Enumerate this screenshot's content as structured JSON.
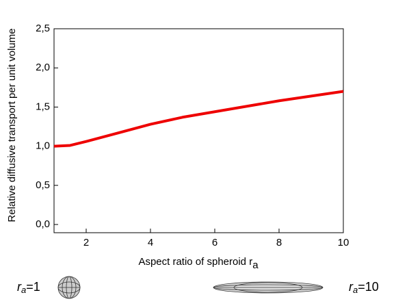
{
  "chart_data": {
    "type": "line",
    "x_label": "Aspect ratio of spheroid r",
    "x_label_sub": "a",
    "y_label": "Relative diffusive transport per unit volume",
    "x": [
      1,
      1.5,
      2,
      3,
      4,
      5,
      6,
      7,
      8,
      9,
      10
    ],
    "series": [
      {
        "color": "#ee0000",
        "values": [
          1.0,
          1.01,
          1.06,
          1.17,
          1.28,
          1.37,
          1.44,
          1.51,
          1.58,
          1.64,
          1.7
        ]
      }
    ],
    "xlim": [
      1,
      10
    ],
    "xticks": [
      2,
      4,
      6,
      8,
      10
    ],
    "ylim": [
      0,
      2.5
    ],
    "yticks": [
      {
        "value": 0,
        "label": "0,0"
      },
      {
        "value": 0.5,
        "label": "0,5"
      },
      {
        "value": 1,
        "label": "1,0"
      },
      {
        "value": 1.5,
        "label": "1,5"
      },
      {
        "value": 2,
        "label": "2,0"
      },
      {
        "value": 2.5,
        "label": "2,5"
      }
    ],
    "annotations": [
      {
        "text": "r",
        "sub": "a",
        "eq": "=1"
      },
      {
        "text": "r",
        "sub": "a",
        "eq": "=10"
      }
    ]
  }
}
